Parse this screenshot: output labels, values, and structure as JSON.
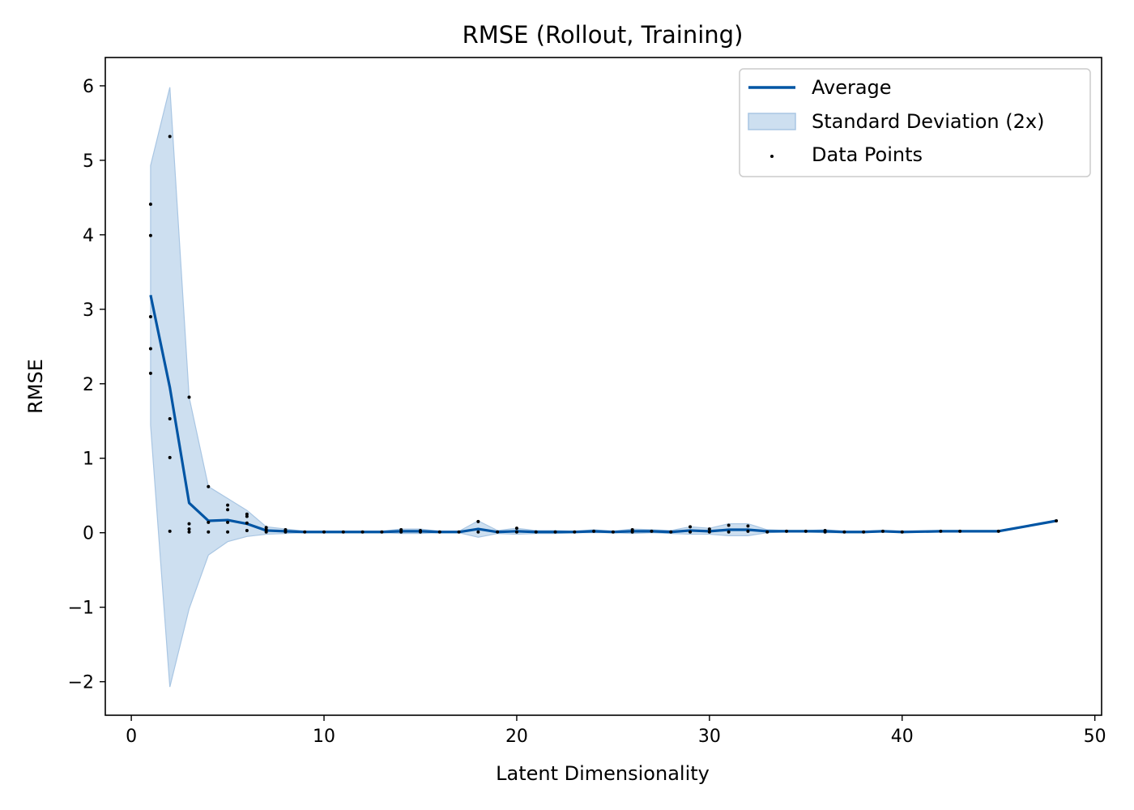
{
  "chart_data": {
    "type": "line",
    "title": "RMSE (Rollout, Training)",
    "xlabel": "Latent Dimensionality",
    "ylabel": "RMSE",
    "xlim": [
      -1.35,
      50.35
    ],
    "ylim": [
      -2.45,
      6.38
    ],
    "xticks": [
      0,
      10,
      20,
      30,
      40,
      50
    ],
    "yticks": [
      -2,
      -1,
      0,
      1,
      2,
      3,
      4,
      5,
      6
    ],
    "ytick_labels": [
      "−2",
      "−1",
      "0",
      "1",
      "2",
      "3",
      "4",
      "5",
      "6"
    ],
    "grid": false,
    "legend_position": "top-right",
    "colors": {
      "average": "#0055a4",
      "band_fill": "#cddff0",
      "band_edge": "#a9c6e3",
      "points": "#000000"
    },
    "legend": [
      {
        "key": "average",
        "label": "Average"
      },
      {
        "key": "band",
        "label": "Standard Deviation (2x)"
      },
      {
        "key": "points",
        "label": "Data Points"
      }
    ],
    "average": {
      "name": "Average",
      "x": [
        1,
        2,
        3,
        4,
        5,
        6,
        7,
        8,
        9,
        10,
        11,
        12,
        13,
        14,
        15,
        16,
        17,
        18,
        19,
        20,
        21,
        22,
        23,
        24,
        25,
        26,
        27,
        28,
        29,
        30,
        31,
        32,
        33,
        34,
        35,
        36,
        37,
        38,
        39,
        40,
        42,
        43,
        45,
        48
      ],
      "y": [
        3.19,
        1.95,
        0.4,
        0.16,
        0.17,
        0.12,
        0.03,
        0.02,
        0.01,
        0.01,
        0.01,
        0.01,
        0.01,
        0.02,
        0.02,
        0.01,
        0.01,
        0.05,
        0.01,
        0.02,
        0.01,
        0.01,
        0.01,
        0.02,
        0.01,
        0.02,
        0.02,
        0.01,
        0.03,
        0.02,
        0.04,
        0.04,
        0.02,
        0.02,
        0.02,
        0.02,
        0.01,
        0.01,
        0.02,
        0.01,
        0.02,
        0.02,
        0.02,
        0.16
      ]
    },
    "std_band": {
      "name": "Standard Deviation (2x)",
      "x": [
        1,
        2,
        3,
        4,
        5,
        6,
        7,
        8,
        9,
        10,
        11,
        12,
        13,
        14,
        15,
        16,
        17,
        18,
        19,
        20,
        21,
        22,
        23,
        24,
        25,
        26,
        27,
        28,
        29,
        30,
        31,
        32,
        33,
        34,
        35,
        36,
        37,
        38,
        39,
        40,
        42,
        43,
        45,
        48
      ],
      "upper": [
        4.93,
        5.98,
        1.82,
        0.62,
        0.46,
        0.3,
        0.08,
        0.05,
        0.02,
        0.02,
        0.02,
        0.02,
        0.02,
        0.05,
        0.05,
        0.02,
        0.02,
        0.16,
        0.03,
        0.06,
        0.03,
        0.03,
        0.02,
        0.04,
        0.02,
        0.05,
        0.04,
        0.03,
        0.08,
        0.06,
        0.12,
        0.12,
        0.04,
        0.03,
        0.03,
        0.04,
        0.02,
        0.02,
        0.03,
        0.02,
        0.03,
        0.03,
        0.03,
        0.16
      ],
      "lower": [
        1.44,
        -2.07,
        -1.02,
        -0.3,
        -0.12,
        -0.05,
        -0.02,
        -0.01,
        0.0,
        0.0,
        0.0,
        0.0,
        0.0,
        -0.01,
        -0.01,
        0.0,
        0.0,
        -0.06,
        -0.01,
        -0.02,
        -0.01,
        -0.01,
        0.0,
        0.0,
        0.0,
        -0.01,
        0.0,
        -0.01,
        -0.02,
        -0.02,
        -0.04,
        -0.04,
        0.0,
        0.01,
        0.01,
        0.0,
        0.0,
        0.0,
        0.01,
        0.0,
        0.01,
        0.01,
        0.01,
        0.16
      ]
    },
    "points": {
      "name": "Data Points",
      "xy": [
        [
          1,
          4.41
        ],
        [
          1,
          3.99
        ],
        [
          1,
          2.9
        ],
        [
          1,
          2.47
        ],
        [
          1,
          2.14
        ],
        [
          2,
          5.32
        ],
        [
          2,
          1.53
        ],
        [
          2,
          1.01
        ],
        [
          2,
          0.02
        ],
        [
          3,
          1.82
        ],
        [
          3,
          0.12
        ],
        [
          3,
          0.05
        ],
        [
          3,
          0.01
        ],
        [
          4,
          0.62
        ],
        [
          4,
          0.14
        ],
        [
          4,
          0.01
        ],
        [
          5,
          0.37
        ],
        [
          5,
          0.31
        ],
        [
          5,
          0.14
        ],
        [
          5,
          0.01
        ],
        [
          6,
          0.25
        ],
        [
          6,
          0.22
        ],
        [
          6,
          0.13
        ],
        [
          6,
          0.03
        ],
        [
          7,
          0.07
        ],
        [
          7,
          0.04
        ],
        [
          7,
          0.01
        ],
        [
          8,
          0.04
        ],
        [
          8,
          0.01
        ],
        [
          9,
          0.01
        ],
        [
          10,
          0.01
        ],
        [
          11,
          0.01
        ],
        [
          12,
          0.01
        ],
        [
          13,
          0.01
        ],
        [
          14,
          0.04
        ],
        [
          14,
          0.01
        ],
        [
          15,
          0.03
        ],
        [
          15,
          0.01
        ],
        [
          16,
          0.01
        ],
        [
          17,
          0.01
        ],
        [
          18,
          0.15
        ],
        [
          18,
          0.01
        ],
        [
          19,
          0.01
        ],
        [
          20,
          0.06
        ],
        [
          20,
          0.01
        ],
        [
          21,
          0.01
        ],
        [
          22,
          0.01
        ],
        [
          23,
          0.01
        ],
        [
          24,
          0.02
        ],
        [
          25,
          0.01
        ],
        [
          26,
          0.04
        ],
        [
          26,
          0.01
        ],
        [
          27,
          0.02
        ],
        [
          28,
          0.01
        ],
        [
          29,
          0.08
        ],
        [
          29,
          0.01
        ],
        [
          30,
          0.05
        ],
        [
          30,
          0.01
        ],
        [
          31,
          0.1
        ],
        [
          31,
          0.01
        ],
        [
          32,
          0.09
        ],
        [
          32,
          0.02
        ],
        [
          33,
          0.01
        ],
        [
          34,
          0.02
        ],
        [
          35,
          0.02
        ],
        [
          36,
          0.03
        ],
        [
          36,
          0.01
        ],
        [
          37,
          0.01
        ],
        [
          38,
          0.01
        ],
        [
          39,
          0.02
        ],
        [
          40,
          0.01
        ],
        [
          42,
          0.02
        ],
        [
          43,
          0.02
        ],
        [
          45,
          0.02
        ],
        [
          48,
          0.16
        ]
      ]
    }
  }
}
